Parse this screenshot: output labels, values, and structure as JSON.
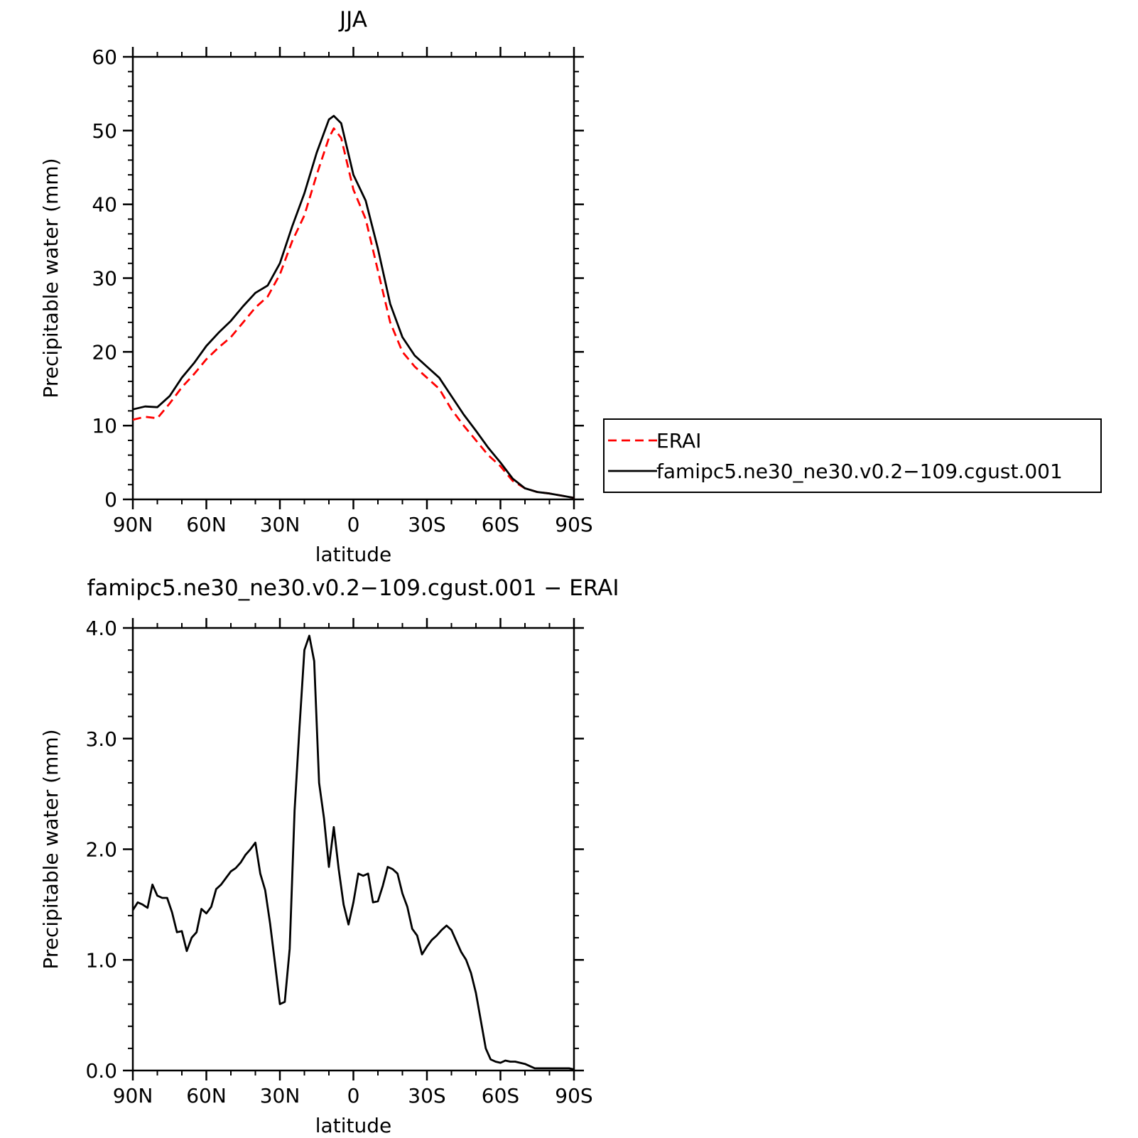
{
  "chart_data": [
    {
      "type": "line",
      "title": "JJA",
      "xlabel": "latitude",
      "ylabel": "Precipitable water (mm)",
      "xlim": [
        90,
        -90
      ],
      "ylim": [
        0,
        60
      ],
      "x_ticks": [
        {
          "value": 90,
          "label": "90N"
        },
        {
          "value": 60,
          "label": "60N"
        },
        {
          "value": 30,
          "label": "30N"
        },
        {
          "value": 0,
          "label": "0"
        },
        {
          "value": -30,
          "label": "30S"
        },
        {
          "value": -60,
          "label": "60S"
        },
        {
          "value": -90,
          "label": "90S"
        }
      ],
      "y_ticks": [
        {
          "value": 0,
          "label": "0"
        },
        {
          "value": 10,
          "label": "10"
        },
        {
          "value": 20,
          "label": "20"
        },
        {
          "value": 30,
          "label": "30"
        },
        {
          "value": 40,
          "label": "40"
        },
        {
          "value": 50,
          "label": "50"
        },
        {
          "value": 60,
          "label": "60"
        }
      ],
      "legend": {
        "placement": "right",
        "entries": [
          "ERAI",
          "famipc5.ne30_ne30.v0.2−109.cgust.001"
        ]
      },
      "series": [
        {
          "name": "ERAI",
          "color": "#ff0000",
          "style": "dashed",
          "x": [
            90,
            85,
            80,
            75,
            70,
            65,
            60,
            55,
            50,
            45,
            40,
            35,
            30,
            25,
            20,
            15,
            10,
            8,
            5,
            0,
            -5,
            -10,
            -15,
            -20,
            -25,
            -30,
            -35,
            -40,
            -45,
            -50,
            -55,
            -60,
            -65,
            -70,
            -75,
            -80,
            -85,
            -90
          ],
          "y": [
            10.8,
            11.2,
            11.0,
            13.0,
            15.2,
            17.0,
            19.0,
            20.6,
            22.0,
            24.0,
            26.0,
            27.5,
            30.5,
            35.0,
            38.5,
            44.0,
            49.0,
            50.3,
            49.0,
            42.0,
            38.0,
            31.0,
            24.0,
            20.0,
            18.0,
            16.5,
            15.0,
            12.2,
            10.0,
            8.0,
            6.0,
            4.5,
            2.5,
            1.5,
            1.0,
            0.8,
            0.5,
            0.2
          ]
        },
        {
          "name": "famipc5.ne30_ne30.v0.2−109.cgust.001",
          "color": "#000000",
          "style": "solid",
          "x": [
            90,
            85,
            80,
            75,
            70,
            65,
            60,
            55,
            50,
            45,
            40,
            35,
            30,
            25,
            20,
            15,
            10,
            8,
            5,
            0,
            -5,
            -10,
            -15,
            -20,
            -25,
            -30,
            -35,
            -40,
            -45,
            -50,
            -55,
            -60,
            -65,
            -70,
            -75,
            -80,
            -85,
            -90
          ],
          "y": [
            12.2,
            12.6,
            12.5,
            14.0,
            16.5,
            18.5,
            20.8,
            22.6,
            24.2,
            26.2,
            28.0,
            29.0,
            32.0,
            37.0,
            41.5,
            47.0,
            51.5,
            52.0,
            51.0,
            44.0,
            40.5,
            34.0,
            26.5,
            22.0,
            19.5,
            18.0,
            16.5,
            14.0,
            11.5,
            9.3,
            7.0,
            5.0,
            2.8,
            1.5,
            1.0,
            0.8,
            0.5,
            0.2
          ]
        }
      ]
    },
    {
      "type": "line",
      "title": "famipc5.ne30_ne30.v0.2−109.cgust.001 − ERAI",
      "xlabel": "latitude",
      "ylabel": "Precipitable water (mm)",
      "xlim": [
        90,
        -90
      ],
      "ylim": [
        0,
        4
      ],
      "x_ticks": [
        {
          "value": 90,
          "label": "90N"
        },
        {
          "value": 60,
          "label": "60N"
        },
        {
          "value": 30,
          "label": "30N"
        },
        {
          "value": 0,
          "label": "0"
        },
        {
          "value": -30,
          "label": "30S"
        },
        {
          "value": -60,
          "label": "60S"
        },
        {
          "value": -90,
          "label": "90S"
        }
      ],
      "y_ticks": [
        {
          "value": 0,
          "label": "0.0"
        },
        {
          "value": 1,
          "label": "1.0"
        },
        {
          "value": 2,
          "label": "2.0"
        },
        {
          "value": 3,
          "label": "3.0"
        },
        {
          "value": 4,
          "label": "4.0"
        }
      ],
      "series": [
        {
          "color": "#000000",
          "style": "solid",
          "x": [
            90,
            88,
            86,
            84,
            82,
            80,
            78,
            76,
            74,
            72,
            70,
            68,
            66,
            64,
            62,
            60,
            58,
            56,
            54,
            52,
            50,
            48,
            46,
            44,
            42,
            40,
            38,
            36,
            34,
            32,
            30,
            28,
            26,
            24,
            22,
            20,
            18,
            16,
            14,
            12,
            10,
            8,
            6,
            4,
            2,
            0,
            -2,
            -4,
            -6,
            -8,
            -10,
            -12,
            -14,
            -16,
            -18,
            -20,
            -22,
            -24,
            -26,
            -28,
            -30,
            -32,
            -34,
            -36,
            -38,
            -40,
            -42,
            -44,
            -46,
            -48,
            -50,
            -52,
            -54,
            -56,
            -58,
            -60,
            -62,
            -64,
            -66,
            -68,
            -70,
            -72,
            -74,
            -76,
            -78,
            -80,
            -82,
            -84,
            -86,
            -88,
            -90
          ],
          "y": [
            1.45,
            1.52,
            1.5,
            1.47,
            1.68,
            1.58,
            1.56,
            1.56,
            1.43,
            1.25,
            1.26,
            1.08,
            1.2,
            1.25,
            1.46,
            1.42,
            1.48,
            1.64,
            1.68,
            1.74,
            1.8,
            1.83,
            1.88,
            1.95,
            2.0,
            2.06,
            1.78,
            1.63,
            1.33,
            0.97,
            0.6,
            0.62,
            1.1,
            2.35,
            3.1,
            3.8,
            3.93,
            3.7,
            2.6,
            2.28,
            1.84,
            2.2,
            1.82,
            1.5,
            1.32,
            1.52,
            1.78,
            1.76,
            1.78,
            1.52,
            1.53,
            1.67,
            1.84,
            1.82,
            1.78,
            1.6,
            1.48,
            1.28,
            1.22,
            1.05,
            1.12,
            1.18,
            1.22,
            1.27,
            1.31,
            1.27,
            1.17,
            1.07,
            1.0,
            0.88,
            0.7,
            0.45,
            0.2,
            0.1,
            0.08,
            0.07,
            0.09,
            0.08,
            0.08,
            0.07,
            0.06,
            0.04,
            0.02,
            0.02,
            0.02,
            0.02,
            0.02,
            0.02,
            0.02,
            0.02,
            0.01
          ]
        }
      ]
    }
  ]
}
